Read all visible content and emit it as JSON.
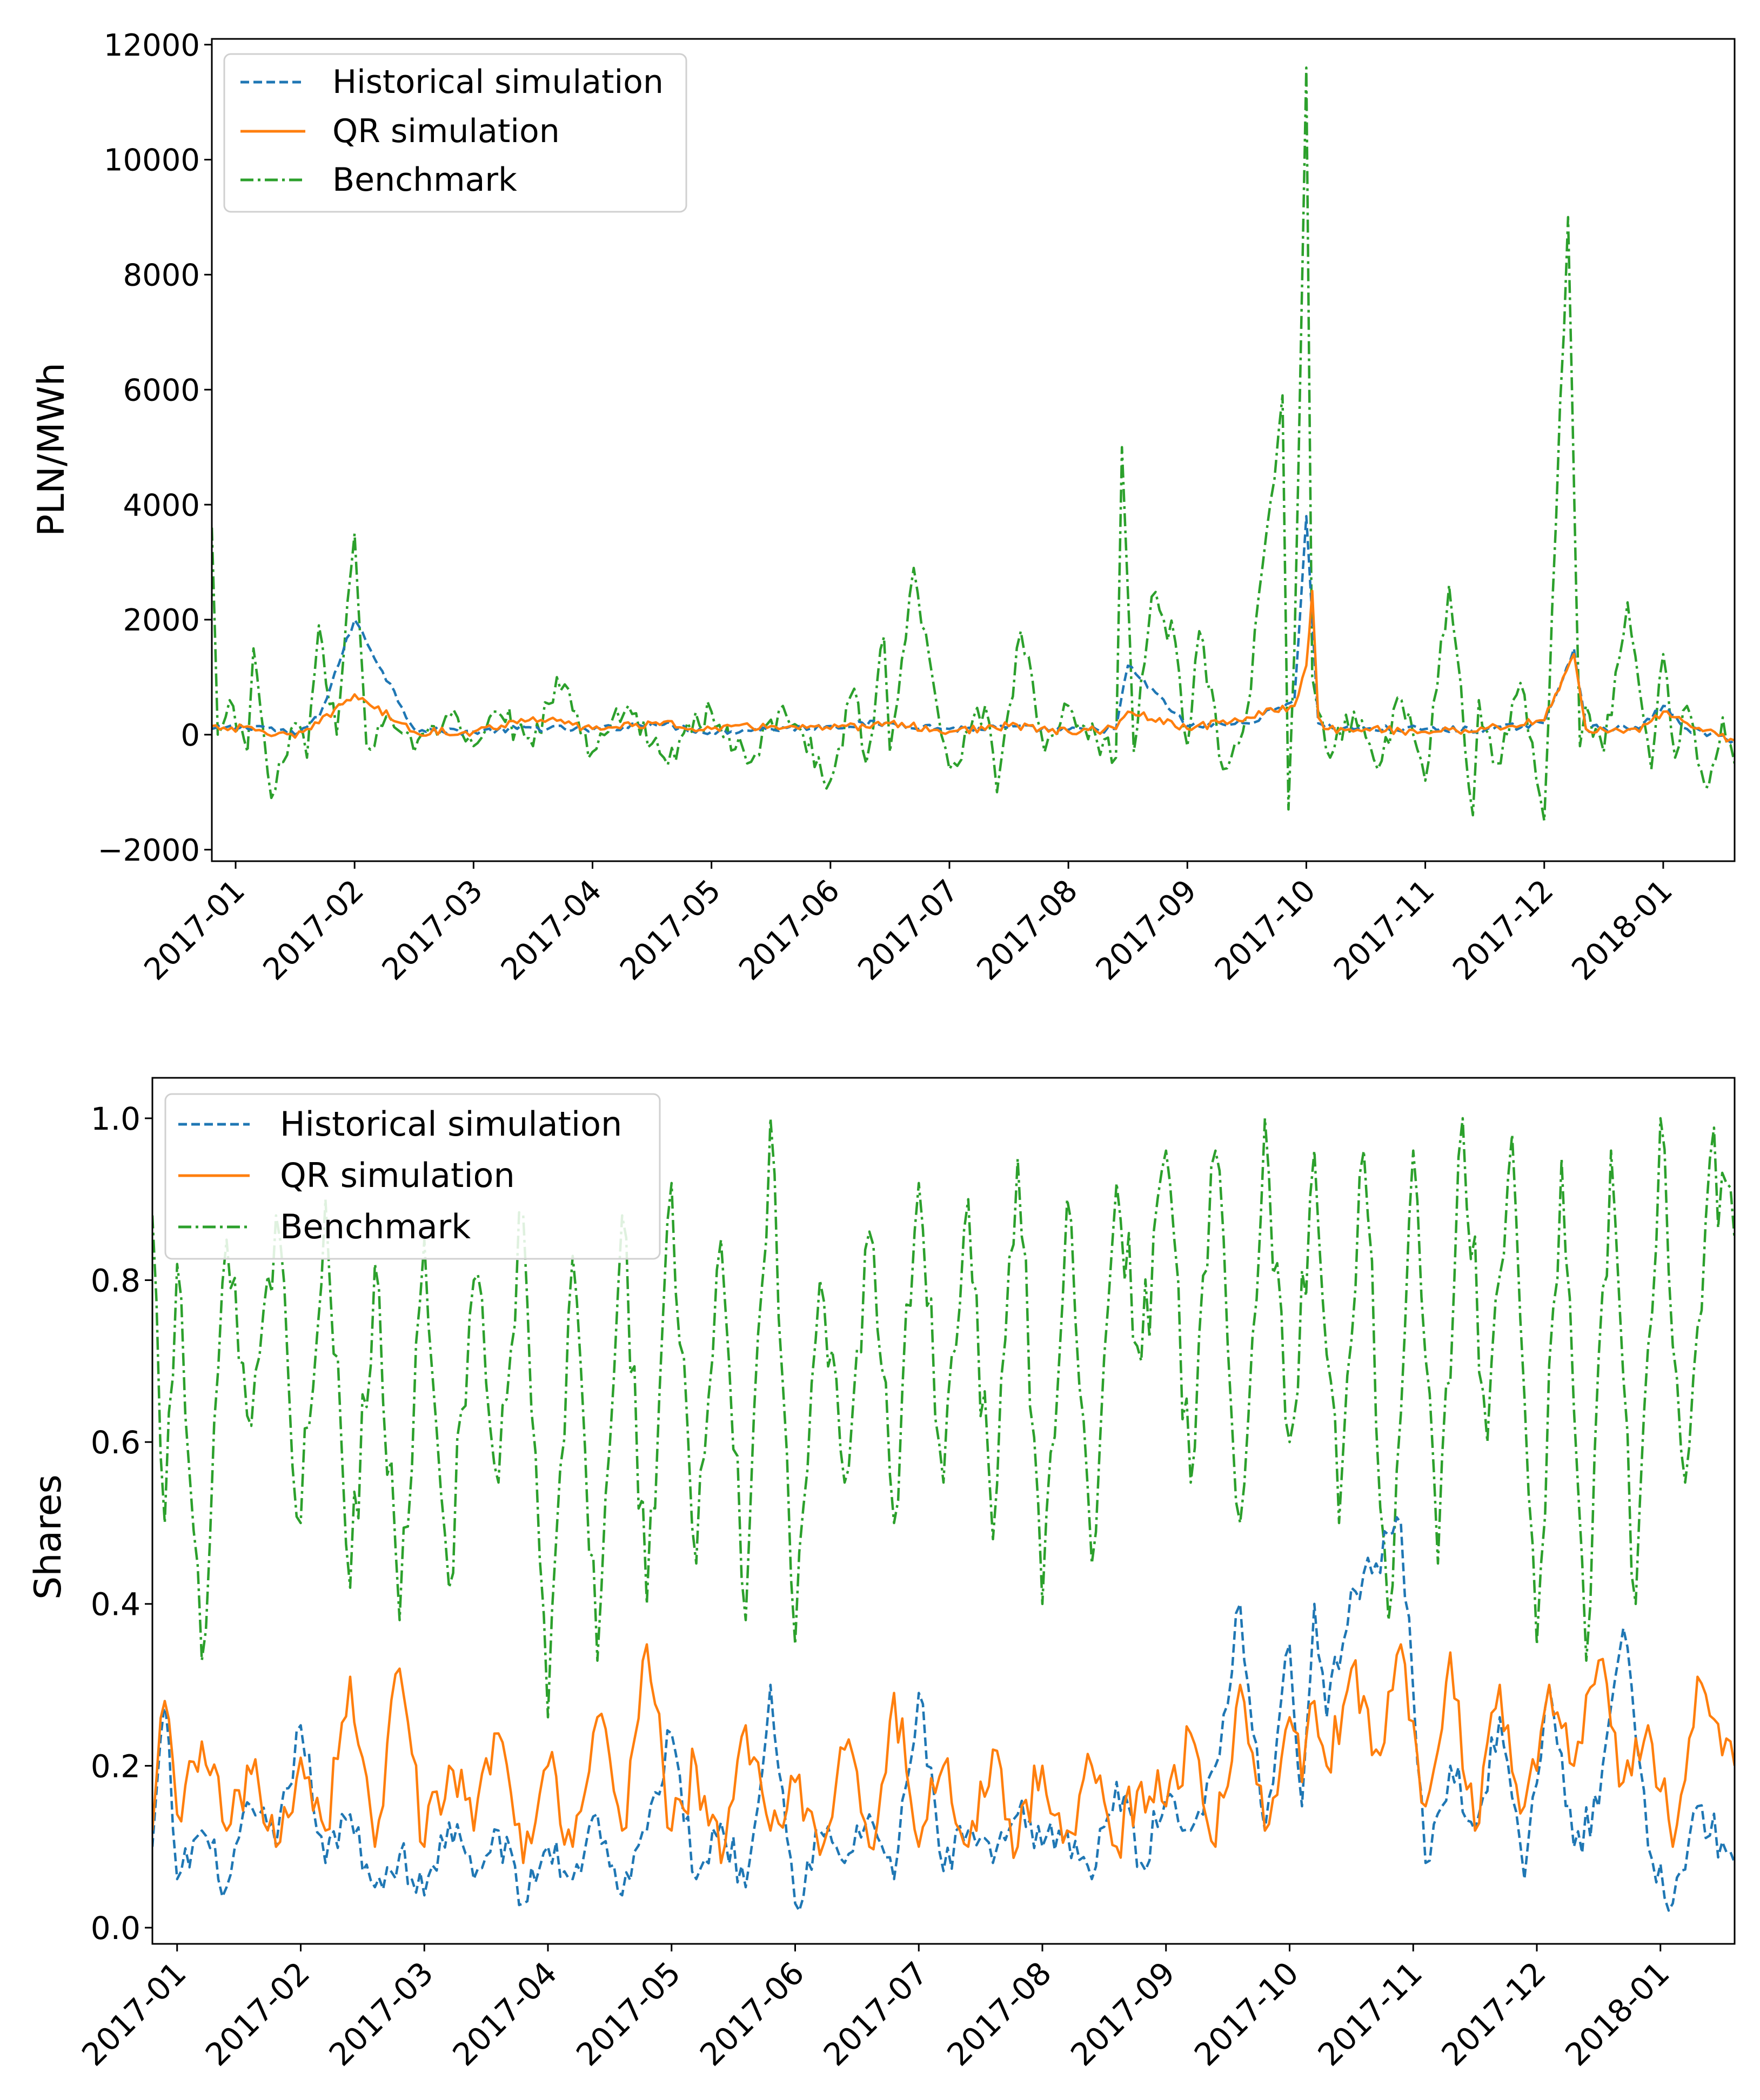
{
  "colors": {
    "historical": "#1f77b4",
    "qr": "#ff7f0e",
    "benchmark": "#2ca02c",
    "axis": "#000000",
    "background": "#ffffff"
  },
  "chart_data": [
    {
      "type": "line",
      "ylabel": "PLN/MWh",
      "xlabel": "",
      "ylim": [
        -2200,
        12100
      ],
      "yticks": [
        -2000,
        0,
        2000,
        4000,
        6000,
        8000,
        10000,
        12000
      ],
      "ytick_labels": [
        "−2000",
        "0",
        "2000",
        "4000",
        "6000",
        "8000",
        "10000",
        "12000"
      ],
      "xrange": [
        -0.2,
        12.6
      ],
      "xticks": [
        0,
        1,
        2,
        3,
        4,
        5,
        6,
        7,
        8,
        9,
        10,
        11,
        12
      ],
      "xtick_labels": [
        "2017-01",
        "2017-02",
        "2017-03",
        "2017-04",
        "2017-05",
        "2017-06",
        "2017-07",
        "2017-08",
        "2017-09",
        "2017-10",
        "2017-11",
        "2017-12",
        "2018-01"
      ],
      "legend": {
        "placement": "upper-left",
        "entries": [
          "Historical simulation",
          "QR simulation",
          "Benchmark"
        ]
      },
      "series": [
        {
          "name": "Historical simulation",
          "style": "dashed",
          "x": [
            -0.2,
            0.2,
            0.5,
            0.7,
            1.0,
            1.5,
            2.0,
            2.5,
            3.0,
            3.5,
            4.0,
            4.5,
            5.0,
            5.5,
            6.0,
            6.5,
            7.0,
            7.4,
            7.5,
            8.0,
            8.5,
            8.9,
            9.0,
            9.05,
            9.1,
            9.15,
            9.5,
            10.0,
            10.5,
            11.0,
            11.25,
            11.35,
            11.5,
            11.8,
            12.0,
            12.2,
            12.6
          ],
          "values": [
            100,
            150,
            0,
            300,
            2000,
            100,
            50,
            120,
            80,
            200,
            50,
            100,
            150,
            200,
            100,
            120,
            80,
            100,
            1200,
            150,
            200,
            600,
            3800,
            2000,
            200,
            150,
            100,
            100,
            80,
            200,
            1500,
            100,
            120,
            100,
            500,
            100,
            -100
          ]
        },
        {
          "name": "QR simulation",
          "style": "solid",
          "x": [
            -0.2,
            0.2,
            0.5,
            0.7,
            1.0,
            1.5,
            2.0,
            2.5,
            3.0,
            3.5,
            4.0,
            4.5,
            5.0,
            5.5,
            6.0,
            6.5,
            7.0,
            7.4,
            7.5,
            8.0,
            8.5,
            8.9,
            9.0,
            9.05,
            9.1,
            9.15,
            9.5,
            10.0,
            10.5,
            11.0,
            11.25,
            11.35,
            11.5,
            11.8,
            12.0,
            12.2,
            12.6
          ],
          "values": [
            150,
            80,
            -50,
            200,
            700,
            50,
            50,
            300,
            100,
            200,
            100,
            150,
            100,
            200,
            50,
            150,
            50,
            100,
            400,
            100,
            300,
            500,
            1200,
            2500,
            300,
            100,
            100,
            50,
            100,
            250,
            1400,
            100,
            80,
            50,
            400,
            200,
            -100
          ]
        },
        {
          "name": "Benchmark",
          "style": "dashdot",
          "x": [
            -0.2,
            -0.15,
            -0.05,
            0.1,
            0.15,
            0.3,
            0.5,
            0.6,
            0.7,
            0.85,
            1.0,
            1.1,
            1.3,
            1.5,
            1.8,
            2.0,
            2.2,
            2.5,
            2.7,
            3.0,
            3.3,
            3.6,
            4.0,
            4.3,
            4.6,
            5.0,
            5.2,
            5.3,
            5.45,
            5.5,
            5.7,
            6.0,
            6.3,
            6.4,
            6.6,
            6.8,
            7.0,
            7.4,
            7.45,
            7.55,
            7.7,
            7.9,
            8.0,
            8.1,
            8.3,
            8.5,
            8.8,
            8.85,
            8.9,
            9.0,
            9.05,
            9.1,
            9.2,
            9.4,
            9.6,
            9.8,
            10.0,
            10.2,
            10.4,
            10.45,
            10.6,
            10.8,
            11.0,
            11.2,
            11.3,
            11.35,
            11.5,
            11.7,
            11.9,
            12.0,
            12.1,
            12.2,
            12.35,
            12.5,
            12.6
          ],
          "values": [
            3600,
            0,
            600,
            -300,
            1500,
            -1100,
            200,
            -400,
            1900,
            0,
            3500,
            -200,
            300,
            -300,
            300,
            -200,
            400,
            -200,
            1000,
            -300,
            500,
            -400,
            400,
            -500,
            500,
            -800,
            800,
            -500,
            1700,
            -300,
            2900,
            -600,
            500,
            -1000,
            1800,
            -300,
            500,
            -400,
            5000,
            -300,
            2400,
            1600,
            -200,
            1800,
            -600,
            400,
            5900,
            -1300,
            1500,
            11600,
            1000,
            400,
            -400,
            400,
            -600,
            600,
            -800,
            2600,
            -1400,
            600,
            -500,
            900,
            -1500,
            9000,
            -200,
            500,
            -300,
            2300,
            -600,
            1400,
            -400,
            500,
            -900,
            300,
            -500
          ]
        }
      ]
    },
    {
      "type": "line",
      "ylabel": "Shares",
      "xlabel": "",
      "ylim": [
        -0.02,
        1.05
      ],
      "yticks": [
        0.0,
        0.2,
        0.4,
        0.6,
        0.8,
        1.0
      ],
      "ytick_labels": [
        "0.0",
        "0.2",
        "0.4",
        "0.6",
        "0.8",
        "1.0"
      ],
      "xrange": [
        -0.2,
        12.6
      ],
      "xticks": [
        0,
        1,
        2,
        3,
        4,
        5,
        6,
        7,
        8,
        9,
        10,
        11,
        12
      ],
      "xtick_labels": [
        "2017-01",
        "2017-02",
        "2017-03",
        "2017-04",
        "2017-05",
        "2017-06",
        "2017-07",
        "2017-08",
        "2017-09",
        "2017-10",
        "2017-11",
        "2017-12",
        "2018-01"
      ],
      "legend": {
        "placement": "upper-left",
        "entries": [
          "Historical simulation",
          "QR simulation",
          "Benchmark"
        ]
      },
      "series": [
        {
          "name": "Historical simulation",
          "style": "dashed",
          "x": [
            -0.2,
            -0.1,
            0.0,
            0.2,
            0.4,
            0.6,
            0.8,
            1.0,
            1.2,
            1.4,
            1.6,
            1.8,
            2.0,
            2.2,
            2.4,
            2.6,
            2.8,
            3.0,
            3.2,
            3.4,
            3.6,
            3.8,
            4.0,
            4.2,
            4.4,
            4.6,
            4.8,
            5.0,
            5.2,
            5.4,
            5.6,
            5.8,
            6.0,
            6.2,
            6.4,
            6.6,
            6.8,
            7.0,
            7.2,
            7.4,
            7.6,
            7.8,
            8.0,
            8.2,
            8.4,
            8.6,
            8.8,
            9.0,
            9.1,
            9.2,
            9.3,
            9.5,
            9.7,
            9.9,
            10.1,
            10.3,
            10.5,
            10.7,
            10.9,
            11.1,
            11.3,
            11.5,
            11.7,
            11.9,
            12.1,
            12.3,
            12.6
          ],
          "values": [
            0.1,
            0.28,
            0.06,
            0.12,
            0.05,
            0.15,
            0.1,
            0.25,
            0.08,
            0.14,
            0.05,
            0.09,
            0.04,
            0.13,
            0.06,
            0.12,
            0.03,
            0.1,
            0.06,
            0.14,
            0.04,
            0.12,
            0.24,
            0.06,
            0.13,
            0.05,
            0.3,
            0.03,
            0.12,
            0.08,
            0.14,
            0.06,
            0.29,
            0.07,
            0.12,
            0.08,
            0.14,
            0.1,
            0.12,
            0.06,
            0.18,
            0.08,
            0.16,
            0.12,
            0.2,
            0.4,
            0.12,
            0.35,
            0.15,
            0.4,
            0.26,
            0.42,
            0.45,
            0.5,
            0.08,
            0.2,
            0.12,
            0.26,
            0.06,
            0.3,
            0.1,
            0.15,
            0.37,
            0.1,
            0.03,
            0.15,
            0.08
          ]
        },
        {
          "name": "QR simulation",
          "style": "solid",
          "x": [
            -0.2,
            -0.1,
            0.0,
            0.2,
            0.4,
            0.6,
            0.8,
            1.0,
            1.2,
            1.4,
            1.6,
            1.8,
            2.0,
            2.2,
            2.4,
            2.6,
            2.8,
            3.0,
            3.2,
            3.4,
            3.6,
            3.8,
            4.0,
            4.2,
            4.4,
            4.6,
            4.8,
            5.0,
            5.2,
            5.4,
            5.6,
            5.8,
            6.0,
            6.2,
            6.4,
            6.6,
            6.8,
            7.0,
            7.2,
            7.4,
            7.6,
            7.8,
            8.0,
            8.2,
            8.4,
            8.6,
            8.8,
            9.0,
            9.1,
            9.2,
            9.3,
            9.5,
            9.7,
            9.9,
            10.1,
            10.3,
            10.5,
            10.7,
            10.9,
            11.1,
            11.3,
            11.5,
            11.7,
            11.9,
            12.1,
            12.3,
            12.6
          ],
          "values": [
            0.12,
            0.28,
            0.14,
            0.23,
            0.12,
            0.19,
            0.1,
            0.21,
            0.12,
            0.31,
            0.1,
            0.32,
            0.1,
            0.2,
            0.12,
            0.24,
            0.08,
            0.2,
            0.1,
            0.26,
            0.12,
            0.35,
            0.12,
            0.2,
            0.08,
            0.25,
            0.12,
            0.18,
            0.09,
            0.22,
            0.1,
            0.29,
            0.1,
            0.2,
            0.1,
            0.22,
            0.1,
            0.2,
            0.12,
            0.2,
            0.1,
            0.18,
            0.15,
            0.24,
            0.1,
            0.3,
            0.12,
            0.26,
            0.18,
            0.28,
            0.2,
            0.32,
            0.22,
            0.35,
            0.15,
            0.34,
            0.12,
            0.3,
            0.15,
            0.3,
            0.2,
            0.33,
            0.18,
            0.25,
            0.1,
            0.31,
            0.2
          ]
        },
        {
          "name": "Benchmark",
          "style": "dashdot",
          "x": [
            -0.2,
            -0.1,
            0.0,
            0.2,
            0.4,
            0.5,
            0.6,
            0.8,
            1.0,
            1.2,
            1.4,
            1.6,
            1.8,
            2.0,
            2.2,
            2.4,
            2.6,
            2.8,
            3.0,
            3.2,
            3.4,
            3.6,
            3.8,
            4.0,
            4.2,
            4.4,
            4.6,
            4.8,
            5.0,
            5.2,
            5.4,
            5.6,
            5.8,
            6.0,
            6.2,
            6.4,
            6.6,
            6.8,
            7.0,
            7.2,
            7.4,
            7.6,
            7.8,
            8.0,
            8.2,
            8.4,
            8.6,
            8.8,
            9.0,
            9.2,
            9.4,
            9.6,
            9.8,
            10.0,
            10.2,
            10.4,
            10.6,
            10.8,
            11.0,
            11.2,
            11.4,
            11.6,
            11.8,
            12.0,
            12.2,
            12.4,
            12.6
          ],
          "values": [
            0.88,
            0.5,
            0.82,
            0.33,
            0.85,
            0.7,
            0.62,
            0.88,
            0.5,
            0.9,
            0.42,
            0.82,
            0.38,
            0.85,
            0.42,
            0.8,
            0.55,
            0.88,
            0.26,
            0.83,
            0.33,
            0.88,
            0.4,
            0.92,
            0.45,
            0.85,
            0.38,
            1.0,
            0.35,
            0.8,
            0.55,
            0.86,
            0.5,
            0.92,
            0.55,
            0.9,
            0.48,
            0.95,
            0.4,
            0.9,
            0.45,
            0.92,
            0.7,
            0.96,
            0.55,
            0.96,
            0.5,
            1.0,
            0.6,
            0.96,
            0.5,
            0.96,
            0.38,
            0.96,
            0.45,
            1.0,
            0.6,
            0.98,
            0.35,
            0.95,
            0.33,
            0.96,
            0.4,
            1.0,
            0.55,
            0.95,
            0.85
          ]
        }
      ]
    }
  ]
}
